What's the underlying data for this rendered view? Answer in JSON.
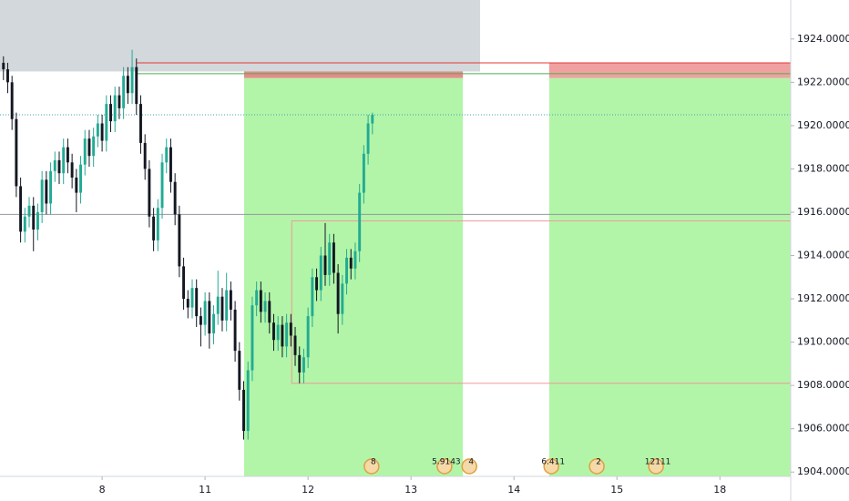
{
  "chart_data": {
    "type": "candlestick",
    "x": [
      1,
      2,
      3,
      4,
      5,
      6,
      7,
      8,
      9,
      10,
      11,
      12,
      13,
      14,
      15,
      16,
      17,
      18,
      19,
      20,
      21,
      22,
      23,
      24,
      25,
      26,
      27,
      28,
      29,
      30,
      31,
      32,
      33,
      34,
      35,
      36,
      37,
      38,
      39,
      40,
      41,
      42,
      43,
      44,
      45,
      46,
      47,
      48,
      49,
      50,
      51,
      52,
      53,
      54,
      55,
      56,
      57,
      58,
      59,
      60,
      61,
      62,
      63,
      64,
      65,
      66,
      67,
      68,
      69,
      70,
      71,
      72,
      73,
      74,
      75,
      76,
      77,
      78,
      79,
      80,
      81,
      82,
      83,
      84,
      85,
      86,
      87
    ],
    "open": [
      1922.9,
      1922.6,
      1922.0,
      1920.3,
      1917.2,
      1915.1,
      1915.8,
      1916.3,
      1915.2,
      1916.0,
      1917.5,
      1916.4,
      1917.9,
      1918.4,
      1917.8,
      1919.0,
      1918.3,
      1917.6,
      1916.9,
      1918.2,
      1919.4,
      1918.6,
      1919.5,
      1920.1,
      1919.3,
      1921.0,
      1920.2,
      1921.4,
      1920.8,
      1922.3,
      1921.5,
      1922.7,
      1921.0,
      1919.2,
      1918.0,
      1915.8,
      1914.7,
      1916.2,
      1918.3,
      1919.0,
      1917.4,
      1915.9,
      1913.5,
      1912.0,
      1911.6,
      1912.5,
      1911.2,
      1910.8,
      1911.9,
      1910.4,
      1911.3,
      1912.1,
      1911.0,
      1912.4,
      1911.5,
      1909.6,
      1907.8,
      1905.9,
      1908.7,
      1911.7,
      1912.4,
      1911.4,
      1911.9,
      1910.9,
      1910.1,
      1910.8,
      1909.8,
      1910.9,
      1910.3,
      1909.4,
      1908.6,
      1909.3,
      1911.2,
      1913.0,
      1912.4,
      1914.0,
      1913.1,
      1914.6,
      1913.2,
      1911.3,
      1912.7,
      1913.9,
      1913.4,
      1914.2,
      1916.9,
      1918.7,
      1920.1
    ],
    "high": [
      1923.2,
      1922.9,
      1922.3,
      1920.6,
      1917.6,
      1916.2,
      1916.7,
      1916.7,
      1916.4,
      1917.9,
      1917.9,
      1918.3,
      1918.8,
      1918.8,
      1919.4,
      1919.4,
      1918.7,
      1918.0,
      1918.6,
      1919.8,
      1919.8,
      1919.9,
      1920.5,
      1920.5,
      1921.4,
      1921.4,
      1921.8,
      1921.8,
      1922.7,
      1922.7,
      1923.5,
      1923.1,
      1921.4,
      1919.6,
      1918.4,
      1916.2,
      1916.6,
      1918.7,
      1919.4,
      1919.4,
      1917.8,
      1916.3,
      1913.9,
      1912.4,
      1912.9,
      1912.9,
      1911.6,
      1912.3,
      1912.3,
      1911.7,
      1913.3,
      1912.5,
      1913.2,
      1912.8,
      1911.9,
      1910.0,
      1908.2,
      1909.1,
      1912.1,
      1912.8,
      1912.8,
      1912.3,
      1912.3,
      1911.3,
      1911.2,
      1911.2,
      1911.3,
      1911.3,
      1910.7,
      1909.8,
      1909.7,
      1911.6,
      1913.4,
      1913.4,
      1914.4,
      1915.5,
      1915.0,
      1915.0,
      1913.6,
      1913.1,
      1914.3,
      1914.3,
      1914.6,
      1917.3,
      1919.1,
      1920.5,
      1920.6
    ],
    "low": [
      1922.1,
      1921.5,
      1919.8,
      1916.7,
      1914.6,
      1914.6,
      1915.3,
      1914.2,
      1914.7,
      1915.5,
      1915.9,
      1915.9,
      1917.4,
      1917.3,
      1917.3,
      1917.8,
      1917.1,
      1916.0,
      1916.4,
      1917.7,
      1918.1,
      1918.1,
      1919.0,
      1918.8,
      1918.8,
      1919.7,
      1919.7,
      1920.3,
      1920.3,
      1921.0,
      1921.0,
      1920.5,
      1918.7,
      1917.5,
      1915.3,
      1914.2,
      1914.2,
      1915.7,
      1917.8,
      1916.9,
      1915.4,
      1913.0,
      1911.5,
      1911.1,
      1911.1,
      1910.7,
      1909.8,
      1910.3,
      1909.7,
      1909.9,
      1910.8,
      1910.5,
      1910.5,
      1911.0,
      1909.1,
      1907.3,
      1905.5,
      1905.5,
      1908.2,
      1911.2,
      1910.9,
      1910.9,
      1910.4,
      1909.6,
      1909.6,
      1909.3,
      1909.3,
      1909.8,
      1908.9,
      1908.1,
      1908.1,
      1908.8,
      1910.7,
      1911.9,
      1911.9,
      1912.6,
      1912.6,
      1912.7,
      1910.4,
      1910.8,
      1912.2,
      1912.9,
      1912.9,
      1913.7,
      1916.4,
      1918.2,
      1919.6
    ],
    "close": [
      1922.6,
      1922.0,
      1920.3,
      1917.2,
      1915.1,
      1915.8,
      1916.3,
      1915.2,
      1916.0,
      1917.5,
      1916.4,
      1917.9,
      1918.4,
      1917.8,
      1919.0,
      1918.3,
      1917.6,
      1916.9,
      1918.2,
      1919.4,
      1918.6,
      1919.5,
      1920.1,
      1919.3,
      1921.0,
      1920.2,
      1921.4,
      1920.8,
      1922.3,
      1921.5,
      1922.7,
      1921.0,
      1919.2,
      1918.0,
      1915.8,
      1914.7,
      1916.2,
      1918.3,
      1919.0,
      1917.4,
      1915.9,
      1913.5,
      1912.0,
      1911.6,
      1912.5,
      1911.2,
      1910.8,
      1911.9,
      1910.4,
      1911.3,
      1912.1,
      1911.0,
      1912.4,
      1911.5,
      1909.6,
      1907.8,
      1905.9,
      1908.7,
      1911.7,
      1912.4,
      1911.4,
      1911.9,
      1910.9,
      1910.1,
      1910.8,
      1909.8,
      1910.9,
      1910.3,
      1909.4,
      1908.6,
      1909.3,
      1911.2,
      1913.0,
      1912.4,
      1914.0,
      1913.1,
      1914.6,
      1913.2,
      1911.3,
      1912.7,
      1913.9,
      1913.4,
      1914.2,
      1916.9,
      1918.7,
      1920.1,
      1920.5
    ],
    "up_color": "#22ab94",
    "down_color": "#131722",
    "xlim": [
      0.2,
      184.5
    ],
    "xticks": [
      {
        "value": 24,
        "label": "8"
      },
      {
        "value": 48,
        "label": "11"
      },
      {
        "value": 72,
        "label": "12"
      },
      {
        "value": 96,
        "label": "13"
      },
      {
        "value": 120,
        "label": "14"
      },
      {
        "value": 144,
        "label": "15"
      },
      {
        "value": 168,
        "label": "18"
      }
    ],
    "ylim": [
      1903.8,
      1925.8
    ],
    "yticks": [
      {
        "value": 1904,
        "label": "1904.00000"
      },
      {
        "value": 1906,
        "label": "1906.00000"
      },
      {
        "value": 1908,
        "label": "1908.00000"
      },
      {
        "value": 1910,
        "label": "1910.00000"
      },
      {
        "value": 1912,
        "label": "1912.00000"
      },
      {
        "value": 1914,
        "label": "1914.00000"
      },
      {
        "value": 1916,
        "label": "1916.00000"
      },
      {
        "value": 1918,
        "label": "1918.00000"
      },
      {
        "value": 1920,
        "label": "1920.00000"
      },
      {
        "value": 1922,
        "label": "1922.00000"
      },
      {
        "value": 1924,
        "label": "1924.00000"
      }
    ],
    "zones": [
      {
        "x": [
          57.1,
          108.1
        ],
        "y": [
          1903.8,
          1922.2
        ],
        "color": "#b2f5a8"
      },
      {
        "x": [
          128.2,
          184.5
        ],
        "y": [
          1903.8,
          1922.2
        ],
        "color": "#b2f5a8"
      },
      {
        "x": [
          57.1,
          108.1
        ],
        "y": [
          1922.2,
          1922.9
        ],
        "color": "#e88a8a"
      },
      {
        "x": [
          128.2,
          184.5
        ],
        "y": [
          1922.2,
          1922.9
        ],
        "color": "#f0a0a0"
      },
      {
        "x": [
          0.2,
          112.1
        ],
        "y": [
          1922.5,
          1925.8
        ],
        "color": "#d3d8dc"
      }
    ],
    "levels": [
      {
        "x": [
          0.2,
          184.5
        ],
        "y": 1915.9,
        "color": "#9598a1",
        "dash": false
      },
      {
        "x": [
          0.2,
          184.5
        ],
        "y": 1920.5,
        "color": "#3fa3b5",
        "dash": true
      },
      {
        "x": [
          32.1,
          184.5
        ],
        "y": 1922.9,
        "color": "#e53935",
        "dash": false
      },
      {
        "x": [
          32.1,
          184.5
        ],
        "y": 1922.4,
        "color": "#4caf50",
        "dash": false
      }
    ],
    "box": {
      "x": [
        68.2,
        184.5
      ],
      "y": [
        1908.1,
        1915.6
      ],
      "color": "#ef9a9a"
    },
    "events": [
      {
        "x": 86.8,
        "label": "8"
      },
      {
        "x": 103.8,
        "label": "5.9143"
      },
      {
        "x": 109.6,
        "label": "4"
      },
      {
        "x": 128.7,
        "label": "6.411"
      },
      {
        "x": 139.3,
        "label": "2"
      },
      {
        "x": 153.1,
        "label": "12111"
      }
    ]
  }
}
